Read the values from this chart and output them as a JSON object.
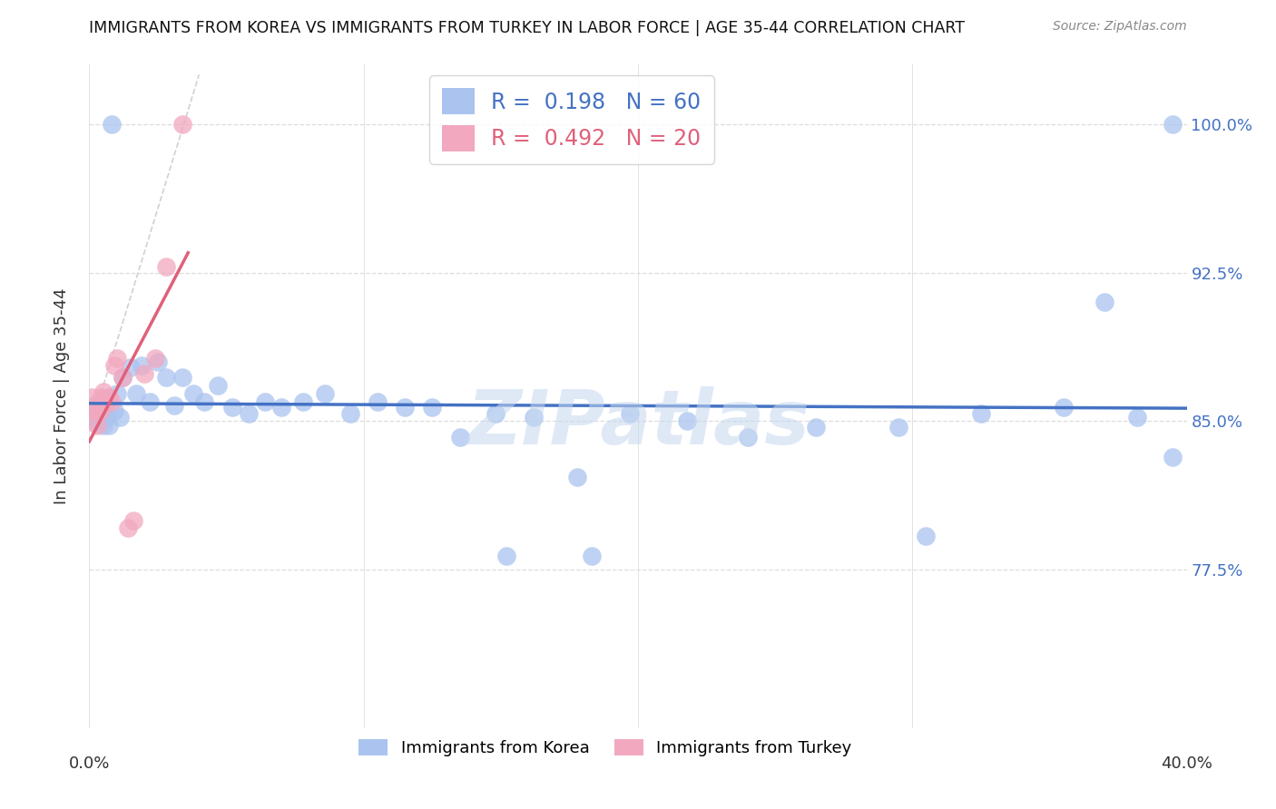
{
  "title": "IMMIGRANTS FROM KOREA VS IMMIGRANTS FROM TURKEY IN LABOR FORCE | AGE 35-44 CORRELATION CHART",
  "source": "Source: ZipAtlas.com",
  "ylabel": "In Labor Force | Age 35-44",
  "ytick_labels": [
    "100.0%",
    "92.5%",
    "85.0%",
    "77.5%"
  ],
  "ytick_values": [
    1.0,
    0.925,
    0.85,
    0.775
  ],
  "xmin": 0.0,
  "xmax": 0.4,
  "ymin": 0.695,
  "ymax": 1.03,
  "R_korea": 0.198,
  "N_korea": 60,
  "R_turkey": 0.492,
  "N_turkey": 20,
  "color_korea": "#aac4ef",
  "color_turkey": "#f2a8bf",
  "line_color_korea": "#4472c4",
  "line_color_turkey": "#e0607a",
  "ref_line_color": "#cccccc",
  "watermark": "ZIPatlas",
  "watermark_color": "#c5d8f0",
  "grid_color": "#dddddd",
  "korea_x": [
    0.001,
    0.001,
    0.002,
    0.002,
    0.003,
    0.003,
    0.003,
    0.004,
    0.004,
    0.005,
    0.005,
    0.005,
    0.006,
    0.006,
    0.007,
    0.007,
    0.008,
    0.009,
    0.01,
    0.011,
    0.012,
    0.015,
    0.017,
    0.019,
    0.022,
    0.025,
    0.028,
    0.031,
    0.034,
    0.038,
    0.042,
    0.047,
    0.052,
    0.058,
    0.064,
    0.07,
    0.078,
    0.086,
    0.095,
    0.105,
    0.115,
    0.125,
    0.135,
    0.148,
    0.162,
    0.178,
    0.197,
    0.218,
    0.24,
    0.265,
    0.295,
    0.325,
    0.355,
    0.382,
    0.395,
    0.152,
    0.183,
    0.305,
    0.37,
    0.395
  ],
  "korea_y": [
    0.852,
    0.856,
    0.853,
    0.858,
    0.851,
    0.856,
    0.849,
    0.854,
    0.858,
    0.852,
    0.851,
    0.848,
    0.855,
    0.852,
    0.862,
    0.848,
    1.0,
    0.855,
    0.864,
    0.852,
    0.872,
    0.877,
    0.864,
    0.878,
    0.86,
    0.88,
    0.872,
    0.858,
    0.872,
    0.864,
    0.86,
    0.868,
    0.857,
    0.854,
    0.86,
    0.857,
    0.86,
    0.864,
    0.854,
    0.86,
    0.857,
    0.857,
    0.842,
    0.854,
    0.852,
    0.822,
    0.854,
    0.85,
    0.842,
    0.847,
    0.847,
    0.854,
    0.857,
    0.852,
    0.832,
    0.782,
    0.782,
    0.792,
    0.91,
    1.0
  ],
  "turkey_x": [
    0.001,
    0.001,
    0.002,
    0.003,
    0.003,
    0.004,
    0.004,
    0.005,
    0.006,
    0.007,
    0.008,
    0.009,
    0.01,
    0.012,
    0.014,
    0.016,
    0.02,
    0.024,
    0.028,
    0.034
  ],
  "turkey_y": [
    0.855,
    0.862,
    0.855,
    0.848,
    0.858,
    0.862,
    0.855,
    0.865,
    0.86,
    0.862,
    0.86,
    0.878,
    0.882,
    0.872,
    0.796,
    0.8,
    0.874,
    0.882,
    0.928,
    1.0
  ]
}
